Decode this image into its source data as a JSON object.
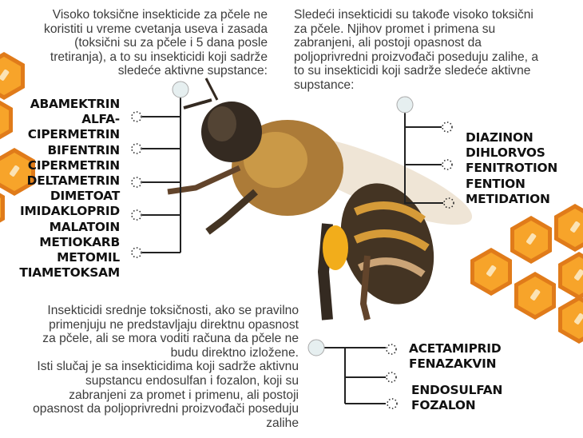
{
  "intro_high_toxic": "Visoko toksične insekticide za pčele ne\nkoristiti u vreme cvetanja useva i zasada\n(toksični su za pčele i 5 dana posle\ntretiranja), a to su insekticidi koji sadrže\nsledeće aktivne supstance:",
  "intro_banned": "Sledeći insekticidi su takođe visoko toksični\nza pčele. Njihov promet i primena su\nzabranjeni, ali postoji opasnost da\npoljoprivredni proizvođači poseduju zalihe, a\nto su insekticidi koji sadrže sledeće aktivne\nsupstance:",
  "intro_medium": "Insekticidi srednje toksičnosti, ako se pravilno\nprimenjuju ne predstavljaju direktnu opasnost\nza pčele, ali se mora voditi računa da pčele ne\nbudu direktno izložene. \nIsti slučaj je sa insekticidima koji sadrže aktivnu\nsupstancu endosulfan i fozalon, koji su\nzabranjeni za promet i primenu, ali postoji\nopasnost da poljoprivredni proizvođači poseduju\nzalihe",
  "high_toxic_list": [
    "ABAMEKTRIN",
    "ALFA-",
    "CIPERMETRIN",
    "BIFENTRIN",
    "CIPERMETRIN",
    "DELTAMETRIN",
    "DIMETOAT",
    "IMIDAKLOPRID",
    "MALATOIN",
    "METIOKARB",
    "METOMIL",
    "TIAMETOKSAM"
  ],
  "banned_list": [
    "DIAZINON",
    "DIHLORVOS",
    "FENITROTION",
    "FENTION",
    "METIDATION"
  ],
  "medium_list_a": [
    "ACETAMIPRID",
    "FENAZAKVIN"
  ],
  "medium_list_b": [
    "ENDOSULFAN",
    "FOZALON"
  ],
  "colors": {
    "honeycomb": "#f59a1f",
    "honeycomb_border": "#e07b1a",
    "text": "#3c3c3c",
    "list_text": "#111111"
  },
  "icons": [
    "honeycomb-decoration",
    "bee-photo",
    "connector-node"
  ]
}
